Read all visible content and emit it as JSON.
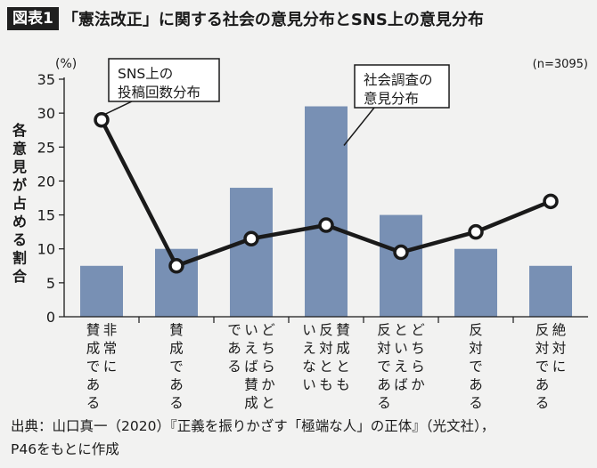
{
  "header": {
    "figure_tag": "図表1",
    "title": "「憲法改正」に関する社会の意見分布とSNS上の意見分布"
  },
  "chart_data": {
    "type": "bar",
    "categories": [
      [
        "非常に",
        "賛成である"
      ],
      [
        "賛成である"
      ],
      [
        "どちらかと",
        "いえば賛成",
        "である"
      ],
      [
        "賛成とも",
        "反対とも",
        "いえない"
      ],
      [
        "どちらか",
        "といえば",
        "反対である"
      ],
      [
        "反対である"
      ],
      [
        "絶対に",
        "反対である"
      ]
    ],
    "series": [
      {
        "type": "bar",
        "values": [
          7.5,
          10,
          19,
          31,
          15,
          10,
          7.5
        ]
      },
      {
        "type": "line",
        "values": [
          29,
          7.5,
          11.5,
          13.5,
          9.5,
          12.5,
          17
        ]
      }
    ],
    "annotations": {
      "line_callout": [
        "SNS上の",
        "投稿回数分布"
      ],
      "bar_callout": [
        "社会調査の",
        "意見分布"
      ],
      "sample_size": "(n=3095)"
    },
    "unit_label": "(%)",
    "ylabel": "各意見が占める割合",
    "ylim": [
      0,
      35
    ],
    "yticks": [
      0,
      5,
      10,
      15,
      20,
      25,
      30,
      35
    ],
    "grid": false,
    "colors": {
      "bar": "#7890b4",
      "line": "#1a1a1a",
      "marker_fill": "#ffffff"
    }
  },
  "source": {
    "line1": "出典：山口真一（2020）『正義を振りかざす「極端な人」の正体』（光文社），",
    "line2": "P46をもとに作成"
  }
}
